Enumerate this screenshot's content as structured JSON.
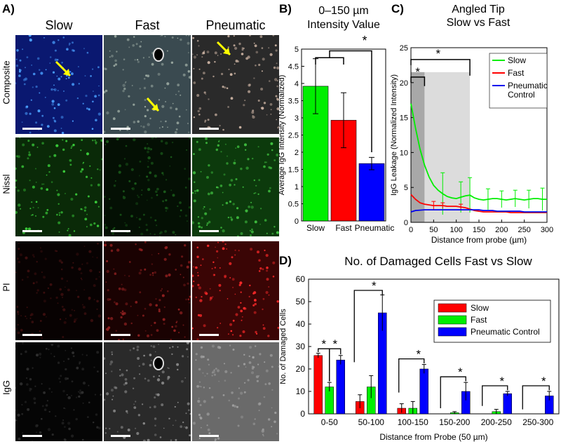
{
  "panel_a": {
    "label": "A)",
    "columns": [
      "Slow",
      "Fast",
      "Pneumatic"
    ],
    "rows": [
      "Composite",
      "Nissl",
      "PI",
      "IgG"
    ]
  },
  "chart_data": [
    {
      "panel": "B)",
      "type": "bar",
      "title": "0–150 µm Intensity Value",
      "title_lines": [
        "0–150 µm",
        "Intensity Value"
      ],
      "ylabel": "Average IgG Intensity (Normalized)",
      "xlabel": "",
      "ylim": [
        0,
        5
      ],
      "yticks": [
        0,
        0.5,
        1,
        1.5,
        2,
        2.5,
        3,
        3.5,
        4,
        4.5,
        5
      ],
      "ytick_labels": [
        "0",
        "0.5",
        "1",
        "1.5",
        "2",
        "2.5",
        "3",
        "3.5",
        "4",
        "4.5",
        "5"
      ],
      "categories": [
        "Slow",
        "Fast",
        "Pneumatic"
      ],
      "values": [
        3.92,
        2.93,
        1.67
      ],
      "errors": [
        0.8,
        0.8,
        0.18
      ],
      "colors": [
        "#00ee00",
        "#ff0000",
        "#0000ff"
      ],
      "annotations": [
        "*"
      ]
    },
    {
      "panel": "C)",
      "type": "line",
      "title": "Angled Tip Slow vs Fast",
      "title_lines": [
        "Angled Tip",
        "Slow vs Fast"
      ],
      "xlabel": "Distance from probe (µm)",
      "ylabel": "IgG Leakage (Normalized Intensity)",
      "xlim": [
        0,
        300
      ],
      "ylim": [
        0,
        25
      ],
      "xticks": [
        0,
        50,
        100,
        150,
        200,
        250,
        300
      ],
      "xtick_labels": [
        "0",
        "50",
        "100",
        "150",
        "200",
        "250",
        "300"
      ],
      "yticks": [
        0,
        5,
        10,
        15,
        20,
        25
      ],
      "ytick_labels": [
        "0",
        "5",
        "10",
        "15",
        "20",
        "25"
      ],
      "legend_position": "top-right",
      "legend": [
        "Slow",
        "Fast",
        "Pneumatic\nControl"
      ],
      "shaded_ranges": [
        [
          0,
          30
        ],
        [
          30,
          130
        ]
      ],
      "annotations": [
        "*",
        "*"
      ],
      "x": [
        0,
        10,
        20,
        30,
        40,
        50,
        60,
        70,
        80,
        90,
        100,
        110,
        120,
        130,
        140,
        150,
        160,
        170,
        180,
        190,
        200,
        210,
        220,
        230,
        240,
        250,
        260,
        270,
        280,
        290,
        300
      ],
      "series": [
        {
          "name": "Slow",
          "color": "#00ee00",
          "values": [
            17,
            13.5,
            10.5,
            8.2,
            6.5,
            5.3,
            4.6,
            4.1,
            3.7,
            3.5,
            3.4,
            3.6,
            3.8,
            3.9,
            3.5,
            3.3,
            3.2,
            3.3,
            3.4,
            3.4,
            3.3,
            3.2,
            3.3,
            3.4,
            3.3,
            3.2,
            3.3,
            3.4,
            3.4,
            3.3,
            3.3
          ],
          "err_x": [
            70,
            110,
            130,
            170,
            200,
            230,
            260,
            290
          ],
          "err": [
            3,
            2.2,
            2.5,
            1.5,
            1.2,
            1.2,
            1.3,
            1.6
          ]
        },
        {
          "name": "Fast",
          "color": "#ff0000",
          "values": [
            4.0,
            3.3,
            2.8,
            2.6,
            2.5,
            2.4,
            2.4,
            2.4,
            2.3,
            2.3,
            2.3,
            2.2,
            2.1,
            1.9,
            1.7,
            1.6,
            1.5,
            1.5,
            1.5,
            1.5,
            1.5,
            1.5,
            1.4,
            1.4,
            1.4,
            1.4,
            1.4,
            1.4,
            1.4,
            1.4,
            1.4
          ],
          "err_x": [
            50,
            70,
            110
          ],
          "err": [
            0.6,
            0.4,
            0.4
          ]
        },
        {
          "name": "Pneumatic\nControl",
          "color": "#0000ee",
          "values": [
            1.5,
            1.7,
            1.75,
            1.8,
            1.8,
            1.8,
            1.8,
            1.8,
            1.8,
            1.8,
            1.8,
            1.8,
            1.8,
            1.8,
            1.8,
            1.8,
            1.7,
            1.7,
            1.7,
            1.6,
            1.6,
            1.6,
            1.6,
            1.6,
            1.6,
            1.5,
            1.5,
            1.5,
            1.5,
            1.5,
            1.5
          ],
          "err_x": [],
          "err": []
        }
      ]
    },
    {
      "panel": "D)",
      "type": "bar",
      "title": "No. of Damaged Cells Fast vs Slow",
      "xlabel": "Distance from Probe (50 µm)",
      "ylabel": "No. of Damaged Cells",
      "ylim": [
        0,
        60
      ],
      "yticks": [
        0,
        10,
        20,
        30,
        40,
        50,
        60
      ],
      "ytick_labels": [
        "0",
        "10",
        "20",
        "30",
        "40",
        "50",
        "60"
      ],
      "legend_position": "top-right",
      "categories": [
        "0-50",
        "50-100",
        "100-150",
        "150-200",
        "200-250",
        "250-300"
      ],
      "series": [
        {
          "name": "Slow",
          "color": "#ff0000",
          "values": [
            26,
            5.5,
            2.5,
            0,
            0,
            0
          ],
          "errors": [
            1,
            3,
            2,
            0,
            0,
            0
          ]
        },
        {
          "name": "Fast",
          "color": "#00ee00",
          "values": [
            12,
            12,
            2.5,
            0.5,
            1,
            0
          ],
          "errors": [
            2,
            5,
            3,
            0.5,
            1,
            0
          ]
        },
        {
          "name": "Pneumatic Control",
          "color": "#0000ff",
          "values": [
            24,
            45,
            20,
            10,
            9,
            8
          ],
          "errors": [
            2,
            8,
            2,
            4,
            1,
            2
          ]
        }
      ],
      "annotations": [
        "*",
        "*",
        "*",
        "*",
        "*",
        "*",
        "*"
      ]
    }
  ]
}
